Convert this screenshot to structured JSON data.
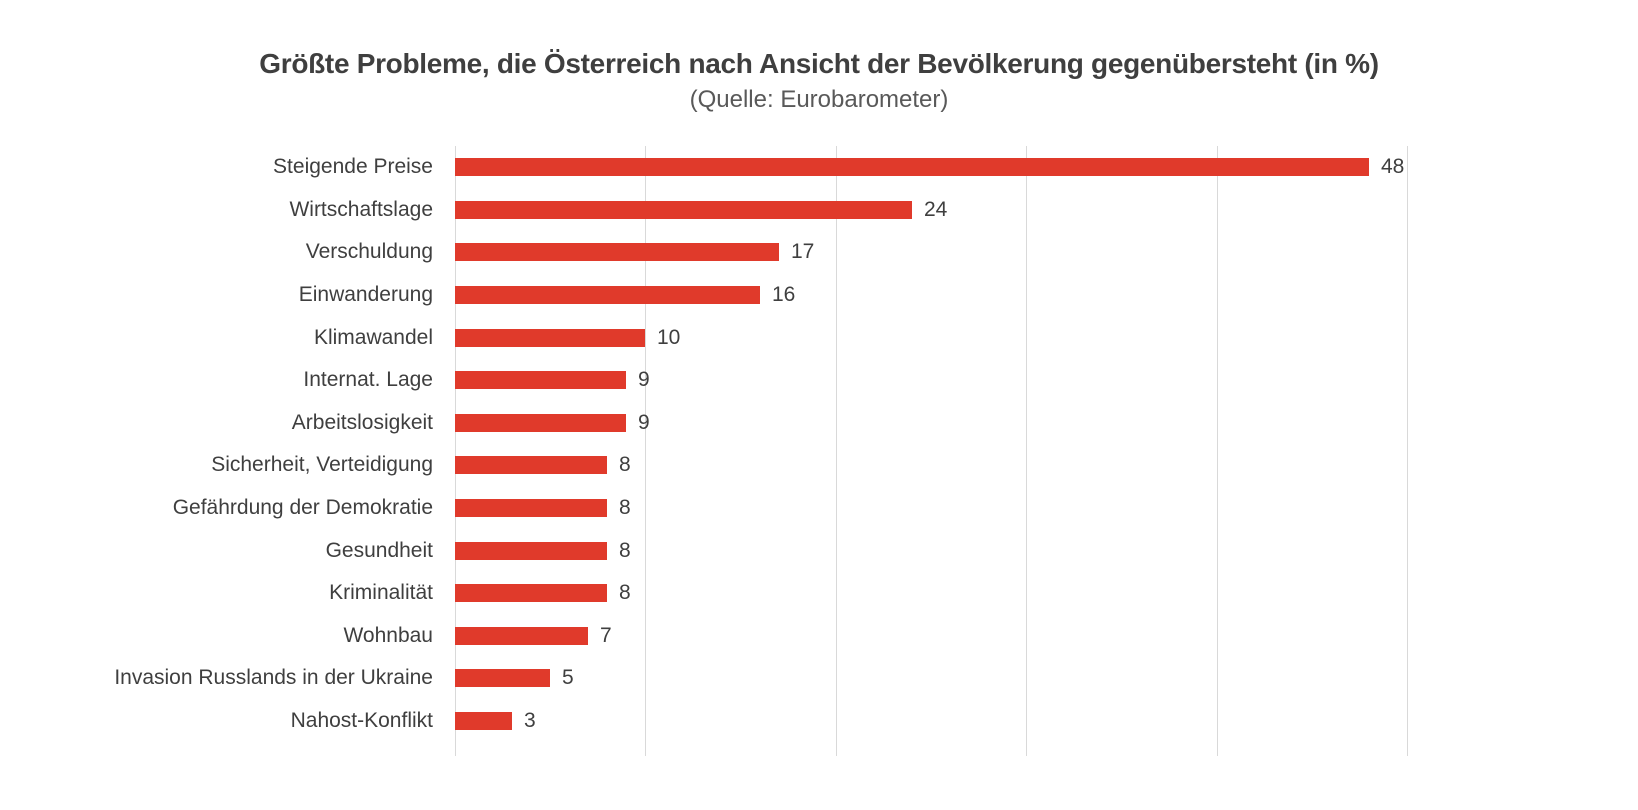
{
  "chart_data": {
    "type": "bar",
    "orientation": "horizontal",
    "title": "Größte Probleme, die Österreich nach Ansicht der Bevölkerung gegenübersteht (in %)",
    "subtitle": "(Quelle: Eurobarometer)",
    "categories": [
      "Steigende Preise",
      "Wirtschaftslage",
      "Verschuldung",
      "Einwanderung",
      "Klimawandel",
      "Internat. Lage",
      "Arbeitslosigkeit",
      "Sicherheit, Verteidigung",
      "Gefährdung der Demokratie",
      "Gesundheit",
      "Kriminalität",
      "Wohnbau",
      "Invasion Russlands in der Ukraine",
      "Nahost-Konflikt"
    ],
    "values": [
      48,
      24,
      17,
      16,
      10,
      9,
      9,
      8,
      8,
      8,
      8,
      7,
      5,
      3
    ],
    "xlim": [
      0,
      50
    ],
    "gridline_step": 10,
    "grid_on": true,
    "legend_position": "none",
    "value_labels": "outside-end",
    "colors": {
      "bar": "#e03a2b",
      "label_text": "#3f3f3f",
      "title_text": "#3f3f3f",
      "subtitle_text": "#595959",
      "gridline": "#d9d9d9"
    }
  }
}
